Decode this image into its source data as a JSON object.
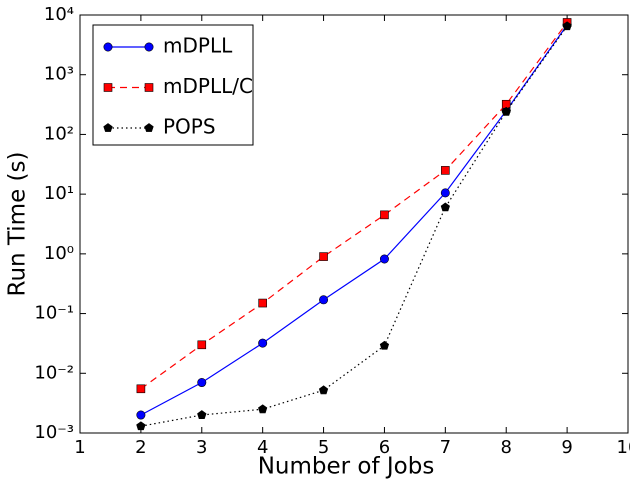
{
  "chart_data": {
    "type": "line",
    "xlabel": "Number of Jobs",
    "ylabel": "Run Time (s)",
    "x": [
      2,
      3,
      4,
      5,
      6,
      7,
      8,
      9
    ],
    "series": [
      {
        "name": "mDPLL",
        "color": "#0000ff",
        "linestyle": "solid",
        "marker": "circle",
        "values": [
          0.002,
          0.007,
          0.032,
          0.17,
          0.82,
          10.5,
          250,
          6800
        ]
      },
      {
        "name": "mDPLL/C",
        "color": "#ff0000",
        "linestyle": "dashed",
        "marker": "square",
        "values": [
          0.0055,
          0.03,
          0.15,
          0.9,
          4.5,
          25,
          320,
          7500
        ]
      },
      {
        "name": "POPS",
        "color": "#000000",
        "linestyle": "dotted",
        "marker": "pentagon",
        "values": [
          0.0013,
          0.002,
          0.0025,
          0.0052,
          0.029,
          6,
          240,
          6500
        ]
      }
    ],
    "xlim": [
      1,
      10
    ],
    "xticks": [
      1,
      2,
      3,
      4,
      5,
      6,
      7,
      8,
      9,
      10
    ],
    "yscale": "log",
    "ylim": [
      0.001,
      10000
    ],
    "yticks": [
      {
        "value": 0.001,
        "label": "10⁻³"
      },
      {
        "value": 0.01,
        "label": "10⁻²"
      },
      {
        "value": 0.1,
        "label": "10⁻¹"
      },
      {
        "value": 1,
        "label": "10⁰"
      },
      {
        "value": 10,
        "label": "10¹"
      },
      {
        "value": 100,
        "label": "10²"
      },
      {
        "value": 1000,
        "label": "10³"
      },
      {
        "value": 10000,
        "label": "10⁴"
      }
    ],
    "legend": "upper left",
    "grid": false
  }
}
